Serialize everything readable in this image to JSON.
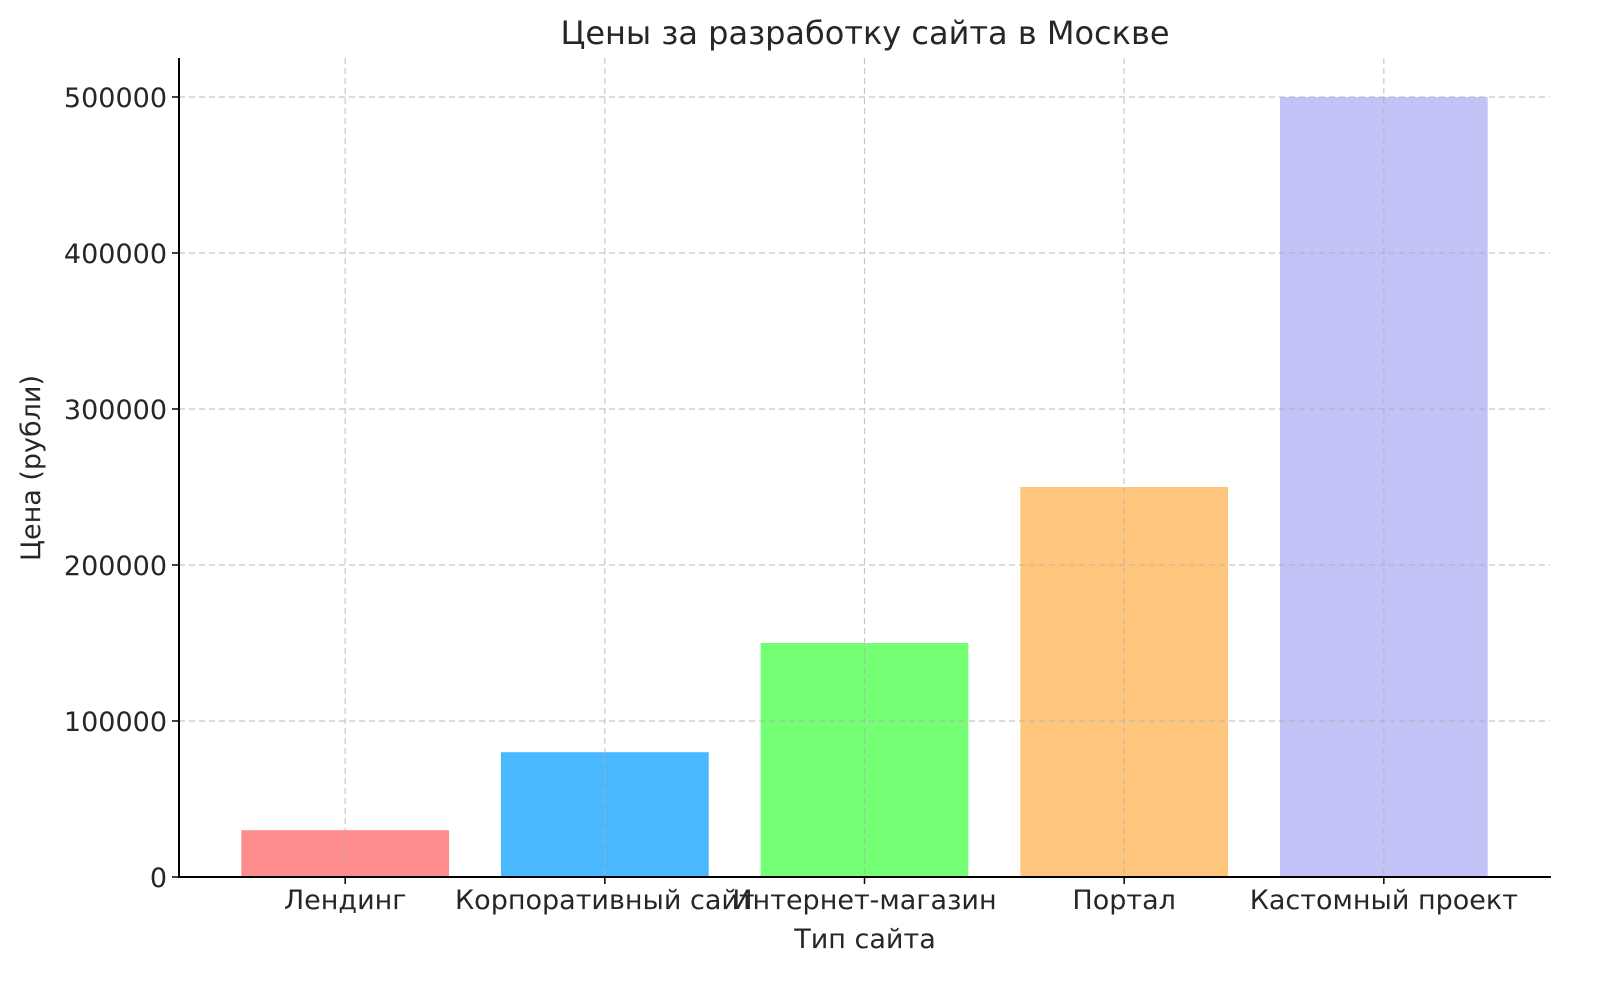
{
  "chart_data": {
    "type": "bar",
    "title": "Цены за разработку сайта в Москве",
    "xlabel": "Тип сайта",
    "ylabel": "Цена (рубли)",
    "categories": [
      "Лендинг",
      "Корпоративный сайт",
      "Интернет-магазин",
      "Портал",
      "Кастомный проект"
    ],
    "values": [
      30000,
      80000,
      150000,
      250000,
      500000
    ],
    "colors": [
      "#ff8c8c",
      "#4ab8ff",
      "#75ff75",
      "#ffc77e",
      "#c3c3f8"
    ],
    "ylim": [
      0,
      525000
    ],
    "yticks": [
      0,
      100000,
      200000,
      300000,
      400000,
      500000
    ],
    "ytick_labels": [
      "0",
      "100000",
      "200000",
      "300000",
      "400000",
      "500000"
    ],
    "grid": true,
    "legend": "none"
  }
}
